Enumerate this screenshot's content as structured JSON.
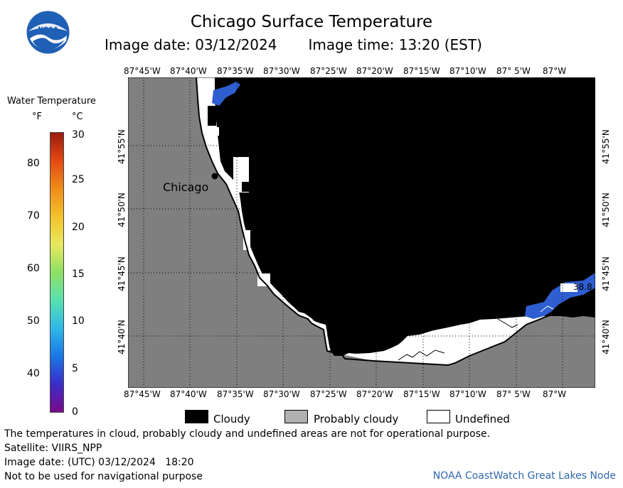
{
  "header": {
    "title": "Chicago Surface Temperature",
    "image_date": "Image date: 03/12/2024",
    "image_time": "Image time: 13:20 (EST)"
  },
  "logo": {
    "text": "NOAA",
    "icon": "noaa-logo-icon"
  },
  "colorbar": {
    "title": "Water Temperature",
    "unit_f": "°F",
    "unit_c": "°C",
    "f_ticks": [
      "80",
      "70",
      "60",
      "50",
      "40"
    ],
    "c_ticks": [
      "30",
      "25",
      "20",
      "15",
      "10",
      "5",
      "0"
    ],
    "colors": [
      "#7b0a8a",
      "#3a2cc8",
      "#1a77e6",
      "#2fb8e8",
      "#59e0b0",
      "#8ee063",
      "#e8e860",
      "#f4c22a",
      "#ef8c19",
      "#e24a13",
      "#9c1a10"
    ]
  },
  "map": {
    "lon_labels": [
      "87°45'W",
      "87°40'W",
      "87°35'W",
      "87°30'W",
      "87°25'W",
      "87°20'W",
      "87°15'W",
      "87°10'W",
      "87° 5'W",
      "87°W"
    ],
    "lat_labels": [
      "41°55'N",
      "41°50'N",
      "41°45'N",
      "41°40'N"
    ],
    "city_label": "Chicago",
    "value_label": "38.8",
    "colors": {
      "land": "#7f7f7f",
      "cloud": "#000000",
      "undefined": "#ffffff",
      "water": "#2e5ecf"
    }
  },
  "legend": {
    "cloudy": "Cloudy",
    "probably_cloudy": "Probably cloudy",
    "undefined": "Undefined"
  },
  "footer": {
    "disclaimer": "The temperatures in cloud, probably cloudy and undefined areas are not for operational purpose.",
    "satellite": "Satellite: VIIRS_NPP",
    "utc_date": "Image date: (UTC) 03/12/2024   18:20",
    "nav_warning": "Not to be used for navigational purpose",
    "credit": "NOAA CoastWatch Great Lakes Node"
  }
}
